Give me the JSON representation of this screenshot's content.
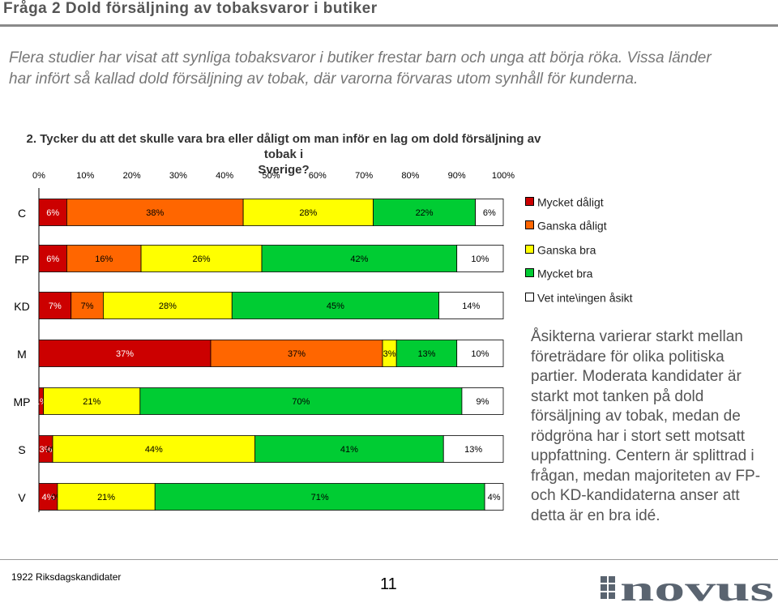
{
  "slide": {
    "title": "Fråga 2 Dold försäljning av tobaksvaror i butiker",
    "intro": "Flera studier har visat att synliga tobaksvaror i butiker frestar barn och unga att börja röka. Vissa länder har infört så kallad dold försäljning av tobak, där varorna förvaras utom synhåll för kunderna.",
    "question_line1": "2. Tycker du att det skulle vara bra eller dåligt om man inför en lag om dold försäljning av tobak i",
    "question_line2": "Sverige?",
    "comment": "Åsikterna varierar starkt mellan företrädare för olika politiska partier. Moderata kandidater är starkt mot tanken på dold försäljning av tobak, medan de rödgröna har i stort sett motsatt uppfattning. Centern är splittrad i frågan, medan majoriteten av FP- och KD-kandidaterna anser att detta är en bra idé.",
    "footer_note": "1922 Riksdagskandidater",
    "page_number": "11",
    "logo_text": "novus"
  },
  "chart_data": {
    "type": "bar",
    "orientation": "horizontal",
    "stacked": "100%",
    "categories": [
      "C",
      "FP",
      "KD",
      "M",
      "MP",
      "S",
      "V"
    ],
    "series": [
      {
        "name": "Mycket dåligt",
        "color": "#cc0000",
        "values": [
          6,
          6,
          7,
          37,
          1,
          3,
          4
        ],
        "labels": [
          "6%",
          "6%",
          "7%",
          "37%",
          "1%",
          "3%",
          "4%"
        ]
      },
      {
        "name": "Ganska dåligt",
        "color": "#ff6600",
        "values": [
          38,
          16,
          7,
          37,
          0,
          0,
          0
        ],
        "labels": [
          "38%",
          "16%",
          "7%",
          "37%",
          "",
          "0%",
          "0%"
        ]
      },
      {
        "name": "Ganska bra",
        "color": "#ffff00",
        "values": [
          28,
          26,
          28,
          3,
          21,
          44,
          21
        ],
        "labels": [
          "28%",
          "26%",
          "28%",
          "3%",
          "21%",
          "44%",
          "21%"
        ]
      },
      {
        "name": "Mycket bra",
        "color": "#00cc33",
        "values": [
          22,
          42,
          45,
          13,
          70,
          41,
          71
        ],
        "labels": [
          "22%",
          "42%",
          "45%",
          "13%",
          "70%",
          "41%",
          "71%"
        ]
      },
      {
        "name": "Vet inte\\ingen åsikt",
        "color": "#ffffff",
        "values": [
          6,
          10,
          14,
          10,
          9,
          13,
          4
        ],
        "labels": [
          "6%",
          "10%",
          "14%",
          "10%",
          "9%",
          "13%",
          "4%"
        ]
      }
    ],
    "xlim": [
      0,
      100
    ],
    "x_ticks": [
      "0%",
      "10%",
      "20%",
      "30%",
      "40%",
      "50%",
      "60%",
      "70%",
      "80%",
      "90%",
      "100%"
    ],
    "legend_position": "right"
  }
}
